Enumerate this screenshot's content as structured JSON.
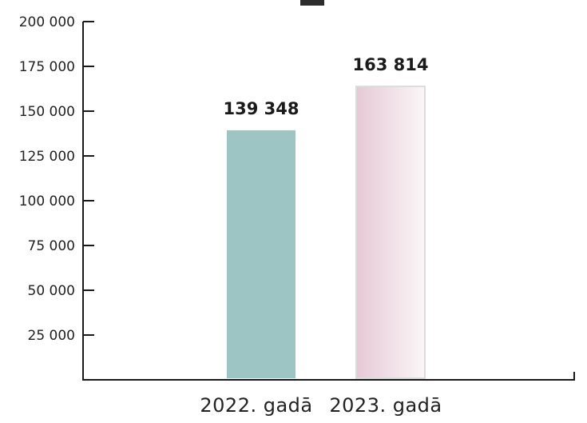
{
  "chart_data": {
    "type": "bar",
    "categories": [
      "2022. gadā",
      "2023. gadā"
    ],
    "values": [
      139348,
      163814
    ],
    "value_labels": [
      "139 348",
      "163 814"
    ],
    "title": "",
    "xlabel": "",
    "ylabel": "",
    "ylim": [
      0,
      200000
    ],
    "yticks": [
      25000,
      50000,
      75000,
      100000,
      125000,
      150000,
      175000,
      200000
    ],
    "ytick_labels": [
      "25 000",
      "50 000",
      "75 000",
      "100 000",
      "125 000",
      "150 000",
      "175 000",
      "200 000"
    ],
    "grid": false,
    "legend": "none",
    "colors": [
      "#9dc5c3",
      "#ead5de"
    ],
    "axis_color": "#1a1a1a"
  }
}
